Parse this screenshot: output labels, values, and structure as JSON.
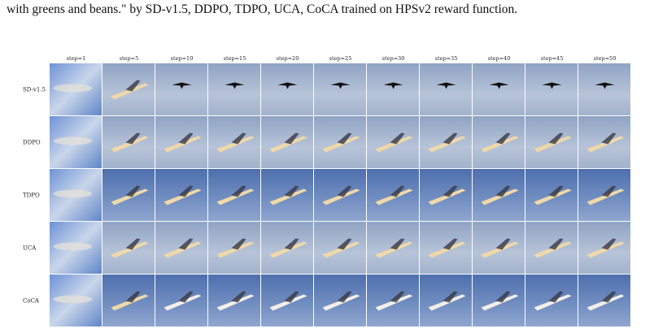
{
  "caption": "with greens and beans.\" by SD-v1.5, DDPO, TDPO, UCA, CoCA trained on HPSv2 reward function.",
  "columns": [
    "step=1",
    "step=5",
    "step=10",
    "step=15",
    "step=20",
    "step=25",
    "step=30",
    "step=35",
    "step=40",
    "step=45",
    "step=50"
  ],
  "rows": [
    "SD-v1.5",
    "DDPO",
    "TDPO",
    "UCA",
    "CoCA"
  ]
}
